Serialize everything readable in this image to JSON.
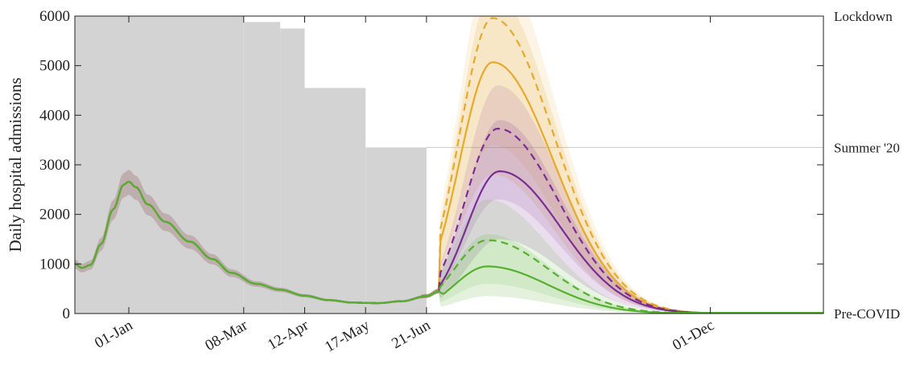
{
  "chart_data": {
    "type": "line",
    "title": "",
    "xlabel": "",
    "ylabel": "Daily hospital admissions",
    "xlim": [
      "2020-12-01",
      "2022-02-04"
    ],
    "ylim": [
      0,
      6000
    ],
    "yticks": [
      0,
      1000,
      2000,
      3000,
      4000,
      5000,
      6000
    ],
    "xticks": [
      {
        "date": "2021-01-01",
        "label": "01-Jan"
      },
      {
        "date": "2021-03-08",
        "label": "08-Mar"
      },
      {
        "date": "2021-04-12",
        "label": "12-Apr"
      },
      {
        "date": "2021-05-17",
        "label": "17-May"
      },
      {
        "date": "2021-06-21",
        "label": "21-Jun"
      },
      {
        "date": "2021-12-01",
        "label": "01-Dec"
      }
    ],
    "right_axis_labels": [
      {
        "label": "Lockdown",
        "y": 6000
      },
      {
        "label": "Summer '20",
        "y": 3350
      },
      {
        "label": "Pre-COVID",
        "y": 0
      }
    ],
    "restriction_steps": [
      {
        "start": "2020-12-01",
        "end": "2021-03-08",
        "level": 6000
      },
      {
        "start": "2021-03-08",
        "end": "2021-03-29",
        "level": 5880
      },
      {
        "start": "2021-03-29",
        "end": "2021-04-12",
        "level": 5750
      },
      {
        "start": "2021-04-12",
        "end": "2021-05-17",
        "level": 4550
      },
      {
        "start": "2021-05-17",
        "end": "2021-06-21",
        "level": 3350
      }
    ],
    "summer_line": {
      "start": "2021-06-21",
      "y": 3350
    },
    "colors": {
      "orange": "#E8A92B",
      "purple": "#7B2E91",
      "green": "#55B02E",
      "shade": "#D3D3D3",
      "summer_line": "#CFCFCF"
    },
    "series": [
      {
        "color": "orange",
        "style": "dashed",
        "peak": 5960,
        "peak_date": "2021-07-29",
        "lower": 3400,
        "upper": 7200
      },
      {
        "color": "orange",
        "style": "solid",
        "peak": 5070,
        "peak_date": "2021-07-29",
        "lower": 2800,
        "upper": 6500
      },
      {
        "color": "purple",
        "style": "dashed",
        "peak": 3730,
        "peak_date": "2021-08-01",
        "lower": 2300,
        "upper": 4600
      },
      {
        "color": "purple",
        "style": "solid",
        "peak": 2870,
        "peak_date": "2021-08-02",
        "lower": 1500,
        "upper": 3900
      },
      {
        "color": "green",
        "style": "dashed",
        "peak": 1480,
        "peak_date": "2021-07-26",
        "lower": 600,
        "upper": 2300
      },
      {
        "color": "green",
        "style": "solid",
        "peak": 950,
        "peak_date": "2021-07-26",
        "lower": 350,
        "upper": 1600
      }
    ],
    "historic": [
      {
        "date": "2020-12-01",
        "value": 1000
      },
      {
        "date": "2020-12-05",
        "value": 920
      },
      {
        "date": "2020-12-10",
        "value": 980
      },
      {
        "date": "2020-12-16",
        "value": 1400
      },
      {
        "date": "2020-12-23",
        "value": 2100
      },
      {
        "date": "2020-12-29",
        "value": 2600
      },
      {
        "date": "2021-01-01",
        "value": 2660
      },
      {
        "date": "2021-01-05",
        "value": 2550
      },
      {
        "date": "2021-01-12",
        "value": 2200
      },
      {
        "date": "2021-01-22",
        "value": 1850
      },
      {
        "date": "2021-02-05",
        "value": 1450
      },
      {
        "date": "2021-02-18",
        "value": 1100
      },
      {
        "date": "2021-03-01",
        "value": 820
      },
      {
        "date": "2021-03-15",
        "value": 600
      },
      {
        "date": "2021-03-29",
        "value": 480
      },
      {
        "date": "2021-04-12",
        "value": 360
      },
      {
        "date": "2021-04-26",
        "value": 270
      },
      {
        "date": "2021-05-10",
        "value": 220
      },
      {
        "date": "2021-05-24",
        "value": 210
      },
      {
        "date": "2021-06-07",
        "value": 250
      },
      {
        "date": "2021-06-21",
        "value": 350
      },
      {
        "date": "2021-06-28",
        "value": 450
      }
    ],
    "grid": false,
    "legend": "none"
  }
}
